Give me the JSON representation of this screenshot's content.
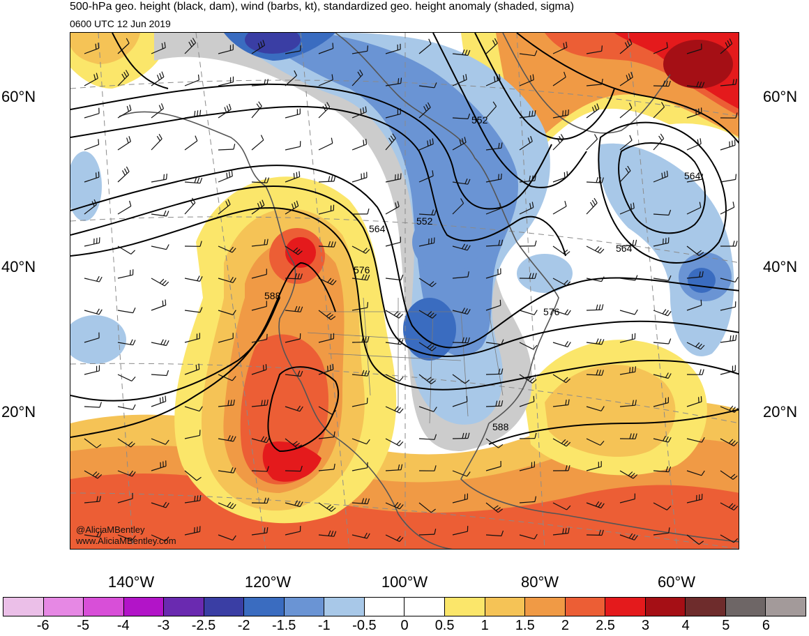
{
  "header": {
    "title": "500-hPa geo. height (black, dam), wind (barbs, kt), standardized geo. height anomaly (shaded, sigma)",
    "valid_time": "0600 UTC 12 Jun 2019"
  },
  "map": {
    "latitude_labels": [
      "60°N",
      "40°N",
      "20°N"
    ],
    "longitude_labels": [
      "140°W",
      "120°W",
      "100°W",
      "80°W",
      "60°W"
    ],
    "contour_labels": [
      "552",
      "564",
      "552",
      "564",
      "576",
      "588",
      "564",
      "576",
      "588"
    ],
    "credit_handle": "@AliciaMBentley",
    "credit_url": "www.AliciaMBentley.com"
  },
  "colorbar": {
    "labels": [
      "-6",
      "-5",
      "-4",
      "-3",
      "-2.5",
      "-2",
      "-1.5",
      "-1",
      "-0.5",
      "0",
      "0.5",
      "1",
      "1.5",
      "2",
      "2.5",
      "3",
      "4",
      "5",
      "6"
    ],
    "colors": [
      "#ebbfe8",
      "#e688e4",
      "#d84fd8",
      "#b214c8",
      "#6a2ab0",
      "#3a3ea4",
      "#3a6cc0",
      "#6a94d4",
      "#a8c8e8",
      "#ffffff",
      "#ffffff",
      "#fbe66a",
      "#f5c356",
      "#f09a45",
      "#ec5e35",
      "#e41a1c",
      "#a50f15",
      "#6e2c2c",
      "#6e6666",
      "#a39a9a"
    ]
  }
}
